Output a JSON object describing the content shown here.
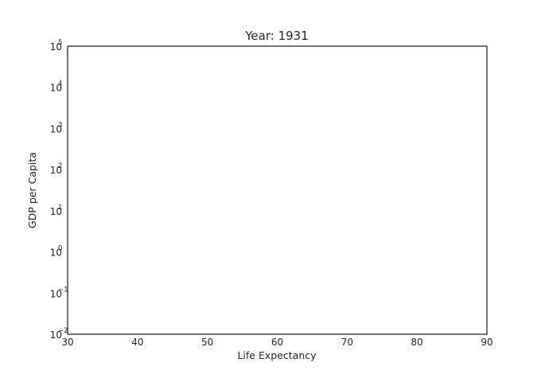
{
  "chart_data": {
    "type": "scatter",
    "title": "Year: 1931",
    "xlabel": "Life Expectancy",
    "ylabel": "GDP per Capita",
    "xlim": [
      30,
      90
    ],
    "ylim": [
      0.01,
      100000
    ],
    "yscale": "log",
    "grid": false,
    "x_ticks": [
      30,
      40,
      50,
      60,
      70,
      80,
      90
    ],
    "x_tick_labels": [
      "30",
      "40",
      "50",
      "60",
      "70",
      "80",
      "90"
    ],
    "y_ticks": [
      0.01,
      0.1,
      1,
      10,
      100,
      1000,
      10000,
      100000
    ],
    "y_tick_labels": [
      {
        "base": "10",
        "exp": "−2"
      },
      {
        "base": "10",
        "exp": "−1"
      },
      {
        "base": "10",
        "exp": "0"
      },
      {
        "base": "10",
        "exp": "1"
      },
      {
        "base": "10",
        "exp": "2"
      },
      {
        "base": "10",
        "exp": "3"
      },
      {
        "base": "10",
        "exp": "4"
      },
      {
        "base": "10",
        "exp": "5"
      }
    ],
    "points": []
  }
}
